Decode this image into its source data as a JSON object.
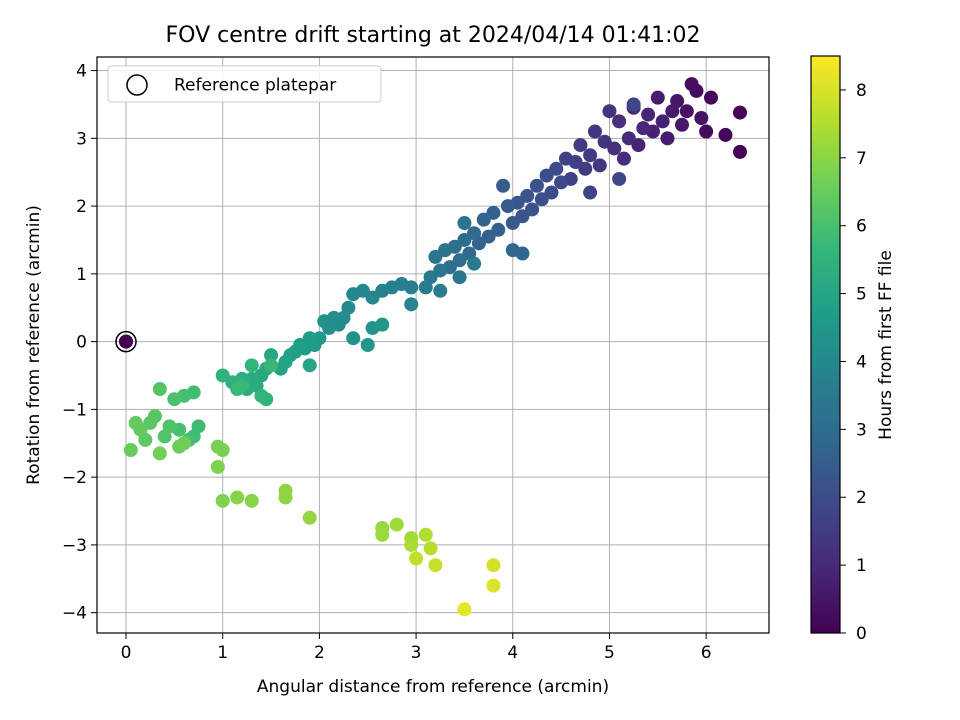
{
  "chart_data": {
    "type": "scatter",
    "title": "FOV centre drift starting at 2024/04/14 01:41:02",
    "xlabel": "Angular distance from reference (arcmin)",
    "ylabel": "Rotation from reference (arcmin)",
    "xlim": [
      -0.3,
      6.65
    ],
    "ylim": [
      -4.3,
      4.2
    ],
    "x_ticks": [
      0,
      1,
      2,
      3,
      4,
      5,
      6
    ],
    "y_ticks": [
      -4,
      -3,
      -2,
      -1,
      0,
      1,
      2,
      3,
      4
    ],
    "x_tick_labels": [
      "0",
      "1",
      "2",
      "3",
      "4",
      "5",
      "6"
    ],
    "y_tick_labels": [
      "−4",
      "−3",
      "−2",
      "−1",
      "0",
      "1",
      "2",
      "3",
      "4"
    ],
    "grid": true,
    "legend": {
      "placement": "top-left",
      "entries": [
        {
          "label": "Reference platepar",
          "marker": "open-circle",
          "x": 0,
          "y": 0
        }
      ]
    },
    "colorbar": {
      "label": "Hours from first FF file",
      "colormap": "viridis",
      "range": [
        0,
        8.5
      ],
      "ticks": [
        0,
        1,
        2,
        3,
        4,
        5,
        6,
        7,
        8
      ],
      "tick_labels": [
        "0",
        "1",
        "2",
        "3",
        "4",
        "5",
        "6",
        "7",
        "8"
      ]
    },
    "colormap_stops": [
      "#440154",
      "#482878",
      "#3e4989",
      "#31688e",
      "#26828e",
      "#1f9e89",
      "#35b779",
      "#6ece58",
      "#b5de2b",
      "#fde725"
    ],
    "reference_point_color": "#440154",
    "series": [
      {
        "points": [
          [
            0.0,
            0.0,
            0.0
          ],
          [
            6.35,
            2.8,
            0.05
          ],
          [
            6.35,
            3.38,
            0.1
          ],
          [
            6.2,
            3.05,
            0.15
          ],
          [
            6.05,
            3.6,
            0.2
          ],
          [
            6.0,
            3.1,
            0.25
          ],
          [
            5.9,
            3.7,
            0.3
          ],
          [
            5.85,
            3.8,
            0.35
          ],
          [
            5.8,
            3.4,
            0.4
          ],
          [
            5.95,
            3.3,
            0.45
          ],
          [
            5.7,
            3.55,
            0.5
          ],
          [
            5.75,
            3.2,
            0.55
          ],
          [
            5.65,
            3.4,
            0.6
          ],
          [
            5.6,
            3.0,
            0.65
          ],
          [
            5.5,
            3.6,
            0.7
          ],
          [
            5.55,
            3.25,
            0.75
          ],
          [
            5.45,
            3.1,
            0.8
          ],
          [
            5.4,
            3.35,
            0.85
          ],
          [
            5.3,
            2.9,
            0.9
          ],
          [
            5.35,
            3.15,
            0.95
          ],
          [
            5.25,
            3.45,
            1.0
          ],
          [
            5.2,
            3.0,
            1.05
          ],
          [
            5.15,
            2.7,
            1.1
          ],
          [
            5.1,
            3.25,
            1.15
          ],
          [
            5.05,
            2.85,
            1.2
          ],
          [
            5.0,
            3.4,
            1.25
          ],
          [
            4.95,
            2.95,
            1.3
          ],
          [
            4.9,
            2.6,
            1.35
          ],
          [
            4.85,
            3.1,
            1.4
          ],
          [
            4.8,
            2.75,
            1.45
          ],
          [
            4.75,
            2.55,
            1.5
          ],
          [
            4.7,
            2.9,
            1.55
          ],
          [
            4.65,
            2.65,
            1.6
          ],
          [
            4.6,
            2.4,
            1.65
          ],
          [
            4.55,
            2.7,
            1.7
          ],
          [
            4.8,
            2.2,
            1.75
          ],
          [
            5.25,
            3.5,
            1.8
          ],
          [
            5.1,
            2.4,
            1.85
          ],
          [
            4.5,
            2.35,
            1.9
          ],
          [
            4.45,
            2.55,
            1.95
          ],
          [
            4.4,
            2.2,
            2.0
          ],
          [
            4.35,
            2.45,
            2.05
          ],
          [
            4.3,
            2.1,
            2.1
          ],
          [
            4.25,
            2.3,
            2.15
          ],
          [
            4.2,
            1.95,
            2.2
          ],
          [
            4.15,
            2.15,
            2.25
          ],
          [
            4.1,
            1.85,
            2.3
          ],
          [
            4.05,
            2.05,
            2.35
          ],
          [
            4.0,
            1.75,
            2.4
          ],
          [
            3.95,
            2.0,
            2.45
          ],
          [
            3.9,
            2.3,
            2.5
          ],
          [
            3.85,
            1.65,
            2.55
          ],
          [
            3.8,
            1.9,
            2.6
          ],
          [
            3.75,
            1.55,
            2.65
          ],
          [
            3.7,
            1.8,
            2.7
          ],
          [
            3.65,
            1.45,
            2.75
          ],
          [
            4.1,
            1.3,
            2.8
          ],
          [
            4.0,
            1.35,
            2.85
          ],
          [
            3.6,
            1.6,
            2.9
          ],
          [
            3.55,
            1.3,
            2.95
          ],
          [
            3.5,
            1.5,
            3.0
          ],
          [
            3.45,
            1.2,
            3.05
          ],
          [
            3.4,
            1.4,
            3.1
          ],
          [
            3.35,
            1.1,
            3.15
          ],
          [
            3.5,
            1.75,
            3.2
          ],
          [
            3.3,
            1.35,
            3.25
          ],
          [
            3.25,
            1.05,
            3.3
          ],
          [
            3.2,
            1.25,
            3.35
          ],
          [
            3.45,
            0.95,
            3.4
          ],
          [
            3.6,
            1.15,
            3.45
          ],
          [
            3.15,
            0.95,
            3.5
          ],
          [
            3.1,
            0.8,
            3.55
          ],
          [
            3.25,
            0.75,
            3.6
          ],
          [
            2.95,
            0.8,
            3.65
          ],
          [
            2.85,
            0.85,
            3.7
          ],
          [
            2.75,
            0.8,
            3.75
          ],
          [
            2.65,
            0.75,
            3.8
          ],
          [
            2.95,
            0.55,
            3.85
          ],
          [
            2.55,
            0.65,
            3.9
          ],
          [
            2.45,
            0.75,
            3.95
          ],
          [
            2.35,
            0.7,
            4.0
          ],
          [
            2.3,
            0.5,
            4.05
          ],
          [
            2.25,
            0.35,
            4.1
          ],
          [
            2.2,
            0.25,
            4.15
          ],
          [
            2.15,
            0.35,
            4.2
          ],
          [
            2.1,
            0.2,
            4.25
          ],
          [
            2.05,
            0.3,
            4.3
          ],
          [
            2.35,
            0.05,
            4.35
          ],
          [
            2.55,
            0.2,
            4.4
          ],
          [
            2.65,
            0.25,
            4.45
          ],
          [
            2.5,
            -0.05,
            4.5
          ],
          [
            2.0,
            0.05,
            4.55
          ],
          [
            1.95,
            -0.05,
            4.6
          ],
          [
            1.9,
            0.05,
            4.65
          ],
          [
            1.85,
            -0.1,
            4.7
          ],
          [
            1.8,
            -0.05,
            4.75
          ],
          [
            1.75,
            -0.15,
            4.8
          ],
          [
            1.7,
            -0.2,
            4.85
          ],
          [
            1.65,
            -0.3,
            4.9
          ],
          [
            1.6,
            -0.4,
            4.95
          ],
          [
            1.9,
            -0.35,
            5.0
          ],
          [
            1.5,
            -0.2,
            5.05
          ],
          [
            1.45,
            -0.4,
            5.1
          ],
          [
            1.4,
            -0.5,
            5.15
          ],
          [
            1.35,
            -0.65,
            5.2
          ],
          [
            1.3,
            -0.55,
            5.25
          ],
          [
            1.25,
            -0.7,
            5.3
          ],
          [
            1.2,
            -0.55,
            5.35
          ],
          [
            1.1,
            -0.6,
            5.4
          ],
          [
            1.0,
            -0.5,
            5.45
          ],
          [
            1.45,
            -0.85,
            5.5
          ],
          [
            1.4,
            -0.8,
            5.55
          ],
          [
            1.3,
            -0.35,
            5.6
          ],
          [
            1.2,
            -0.65,
            5.65
          ],
          [
            1.5,
            -0.35,
            5.7
          ],
          [
            1.15,
            -0.7,
            5.75
          ],
          [
            0.75,
            -1.25,
            5.8
          ],
          [
            0.7,
            -1.4,
            5.85
          ],
          [
            0.65,
            -1.45,
            5.9
          ],
          [
            0.6,
            -0.8,
            5.95
          ],
          [
            0.55,
            -1.3,
            6.0
          ],
          [
            0.5,
            -0.85,
            6.05
          ],
          [
            0.45,
            -1.25,
            6.1
          ],
          [
            0.4,
            -1.4,
            6.15
          ],
          [
            0.35,
            -0.7,
            6.2
          ],
          [
            0.3,
            -1.1,
            6.25
          ],
          [
            0.25,
            -1.2,
            6.3
          ],
          [
            0.2,
            -1.45,
            6.35
          ],
          [
            0.15,
            -1.3,
            6.4
          ],
          [
            0.1,
            -1.2,
            6.45
          ],
          [
            0.05,
            -1.6,
            6.5
          ],
          [
            0.55,
            -1.55,
            6.55
          ],
          [
            0.6,
            -1.5,
            6.6
          ],
          [
            0.35,
            -1.65,
            6.65
          ],
          [
            0.95,
            -1.55,
            6.7
          ],
          [
            1.0,
            -1.6,
            6.75
          ],
          [
            0.95,
            -1.85,
            6.8
          ],
          [
            1.0,
            -2.35,
            6.85
          ],
          [
            1.15,
            -2.3,
            6.9
          ],
          [
            1.3,
            -2.35,
            6.95
          ],
          [
            1.65,
            -2.3,
            7.0
          ],
          [
            1.65,
            -2.2,
            7.05
          ],
          [
            1.9,
            -2.6,
            7.1
          ],
          [
            2.65,
            -2.75,
            7.15
          ],
          [
            2.65,
            -2.85,
            7.2
          ],
          [
            2.8,
            -2.7,
            7.25
          ],
          [
            2.95,
            -2.9,
            7.3
          ],
          [
            2.95,
            -3.0,
            7.4
          ],
          [
            3.1,
            -2.85,
            7.5
          ],
          [
            3.15,
            -3.05,
            7.6
          ],
          [
            3.0,
            -3.2,
            7.7
          ],
          [
            3.2,
            -3.3,
            7.8
          ],
          [
            3.8,
            -3.3,
            7.95
          ],
          [
            3.8,
            -3.6,
            8.05
          ],
          [
            3.5,
            -3.95,
            8.2
          ],
          [
            0.7,
            -0.75,
            5.9
          ]
        ]
      }
    ]
  }
}
